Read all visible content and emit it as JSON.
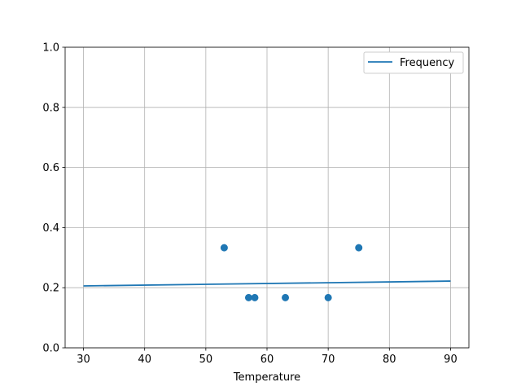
{
  "chart_data": {
    "type": "scatter",
    "title": "",
    "xlabel": "Temperature",
    "ylabel": "",
    "xlim": [
      27,
      93
    ],
    "ylim": [
      0,
      1.0
    ],
    "xticks": [
      30,
      40,
      50,
      60,
      70,
      80,
      90
    ],
    "yticks": [
      0.0,
      0.2,
      0.4,
      0.6,
      0.8,
      1.0
    ],
    "xtick_labels": [
      "30",
      "40",
      "50",
      "60",
      "70",
      "80",
      "90"
    ],
    "ytick_labels": [
      "0.0",
      "0.2",
      "0.4",
      "0.6",
      "0.8",
      "1.0"
    ],
    "grid": true,
    "legend_position": "top-right",
    "series": [
      {
        "name": "Frequency",
        "type": "line",
        "color": "#1f77b4",
        "x": [
          30,
          90
        ],
        "y": [
          0.206,
          0.222
        ]
      },
      {
        "type": "scatter",
        "color": "#1f77b4",
        "x": [
          53,
          57,
          58,
          63,
          70,
          75
        ],
        "y": [
          0.333,
          0.167,
          0.167,
          0.167,
          0.167,
          0.333
        ]
      }
    ]
  }
}
